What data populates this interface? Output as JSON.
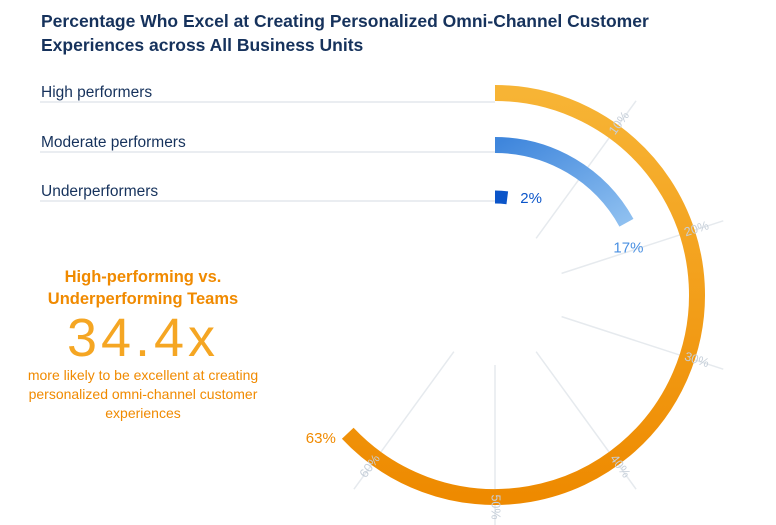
{
  "title": "Percentage Who Excel at Creating Personalized Omni-Channel Customer Experiences across All Business Units",
  "callout": {
    "heading": "High-performing vs. Underperforming Teams",
    "stat": "34.4x",
    "text": "more likely to be excellent at creating personalized omni-channel customer experiences"
  },
  "colors": {
    "high": "#f5a623",
    "moderate": "#4a90e2",
    "under": "#0b55c9",
    "text": "#16325c",
    "grid": "#e6eaee",
    "callout": "#f08a00"
  },
  "chart_data": {
    "type": "radial-bar",
    "categories": [
      "High performers",
      "Moderate performers",
      "Underperformers"
    ],
    "values": [
      63,
      17,
      2
    ],
    "value_labels": [
      "63%",
      "17%",
      "2%"
    ],
    "scale_ticks": [
      10,
      20,
      30,
      40,
      50,
      60
    ],
    "scale_tick_labels": [
      "10%",
      "20%",
      "30%",
      "40%",
      "50%",
      "60%"
    ],
    "scale_max": 100
  }
}
